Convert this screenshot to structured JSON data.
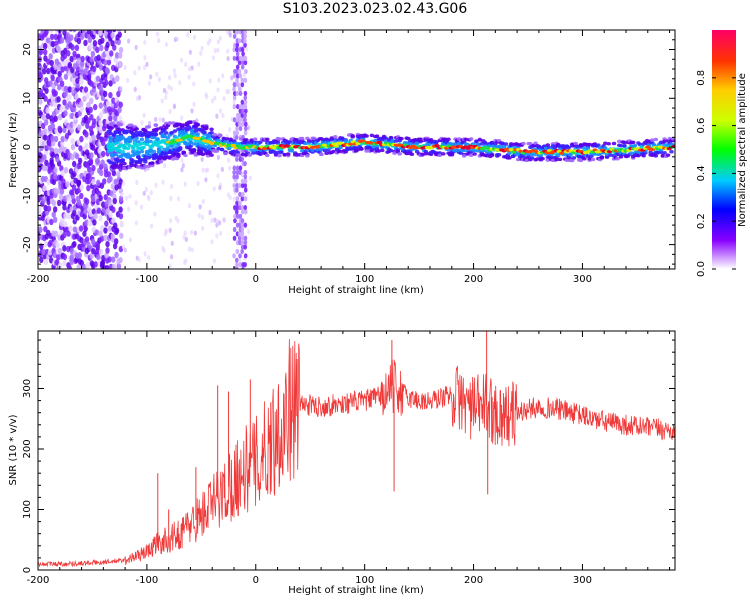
{
  "page": {
    "title": "S103.2023.023.02.43.G06"
  },
  "chart_data": [
    {
      "type": "heatmap",
      "xlabel": "Height of straight line (km)",
      "ylabel": "Frequency (Hz)",
      "xlim": [
        -200,
        385
      ],
      "ylim": [
        -25,
        24
      ],
      "x_ticks": [
        -200,
        -100,
        0,
        100,
        200,
        300
      ],
      "y_ticks": [
        -20,
        -10,
        0,
        10,
        20
      ],
      "colorbar": {
        "label": "Normalized spectral amplitude",
        "range": [
          0,
          1
        ],
        "ticks": [
          0.0,
          0.2,
          0.4,
          0.6,
          0.8
        ],
        "tick_labels": [
          "0.0",
          "0.2",
          "0.4",
          "0.6",
          "0.8"
        ]
      },
      "features": {
        "ridge_frequency_hz": [
          [
            -130,
            0
          ],
          [
            -100,
            0
          ],
          [
            -60,
            2
          ],
          [
            -40,
            1
          ],
          [
            -20,
            0
          ],
          [
            0,
            0
          ],
          [
            50,
            0
          ],
          [
            100,
            1
          ],
          [
            150,
            0
          ],
          [
            200,
            0
          ],
          [
            250,
            -1
          ],
          [
            300,
            -1
          ],
          [
            385,
            0
          ]
        ],
        "noise_region_km": [
          -200,
          -125
        ],
        "noise_column_km": [
          -20,
          -10
        ]
      }
    },
    {
      "type": "line",
      "xlabel": "Height of straight line (km)",
      "ylabel": "SNR (10 * v/v)",
      "xlim": [
        -200,
        385
      ],
      "ylim": [
        0,
        395
      ],
      "x_ticks": [
        -200,
        -100,
        0,
        100,
        200,
        300
      ],
      "y_ticks": [
        0,
        100,
        200,
        300
      ],
      "color": "#f03a3a",
      "series": [
        {
          "x": [
            -200,
            -180,
            -160,
            -140,
            -120,
            -100,
            -90,
            -80,
            -70,
            -60,
            -50,
            -40,
            -30,
            -20,
            -10,
            0,
            10,
            20,
            30,
            40,
            50,
            60,
            80,
            100,
            110,
            120,
            125,
            130,
            140,
            150,
            160,
            170,
            180,
            190,
            200,
            210,
            220,
            230,
            240,
            250,
            260,
            280,
            300,
            320,
            340,
            360,
            385
          ],
          "y": [
            10,
            10,
            11,
            13,
            16,
            30,
            45,
            50,
            60,
            75,
            90,
            110,
            125,
            150,
            165,
            175,
            200,
            230,
            265,
            275,
            272,
            270,
            275,
            280,
            285,
            290,
            305,
            300,
            285,
            280,
            278,
            285,
            290,
            280,
            265,
            275,
            260,
            255,
            260,
            265,
            270,
            265,
            255,
            245,
            240,
            235,
            230
          ]
        }
      ],
      "spikes": [
        {
          "x": -90,
          "y": 160
        },
        {
          "x": -80,
          "y": 100
        },
        {
          "x": -55,
          "y": 170
        },
        {
          "x": -35,
          "y": 305
        },
        {
          "x": -25,
          "y": 295
        },
        {
          "x": -5,
          "y": 315
        },
        {
          "x": 125,
          "y": 380
        },
        {
          "x": 127,
          "y": 130
        },
        {
          "x": 212,
          "y": 395
        },
        {
          "x": 213,
          "y": 125
        }
      ]
    }
  ]
}
